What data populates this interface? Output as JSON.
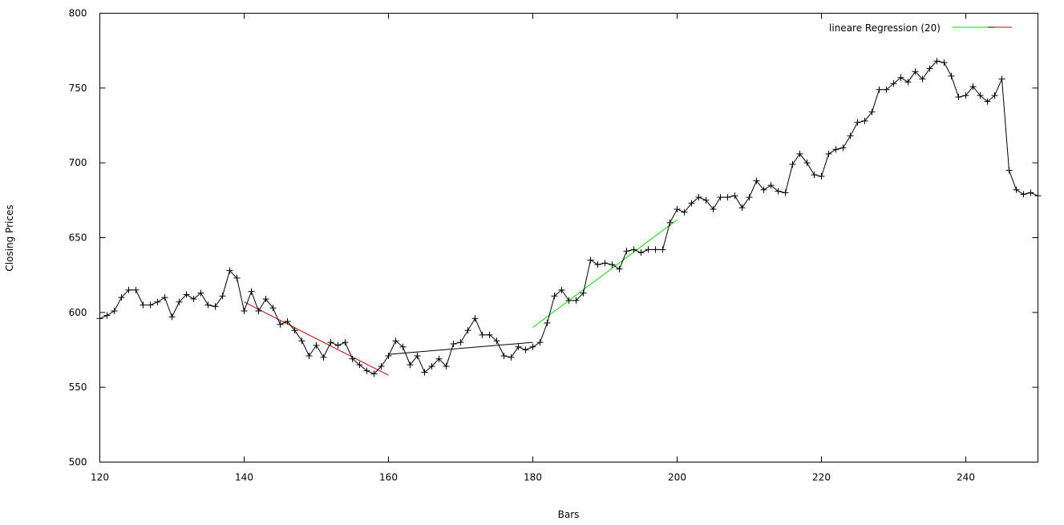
{
  "chart_data": {
    "type": "line",
    "xlabel": "Bars",
    "ylabel": "Closing Prices",
    "xlim": [
      120,
      250
    ],
    "ylim": [
      500,
      800
    ],
    "xticks": [
      120,
      140,
      160,
      180,
      200,
      220,
      240
    ],
    "yticks": [
      500,
      550,
      600,
      650,
      700,
      750,
      800
    ],
    "grid": false,
    "legend_position": "top-right",
    "legend": {
      "label": "lineare Regression (20)",
      "colors": [
        "#00dd00",
        "#000000",
        "#cc0000"
      ]
    },
    "series": [
      {
        "color": "#000000",
        "marker": "plus",
        "x": [
          120,
          121,
          122,
          123,
          124,
          125,
          126,
          127,
          128,
          129,
          130,
          131,
          132,
          133,
          134,
          135,
          136,
          137,
          138,
          139,
          140,
          141,
          142,
          143,
          144,
          145,
          146,
          147,
          148,
          149,
          150,
          151,
          152,
          153,
          154,
          155,
          156,
          157,
          158,
          159,
          160,
          161,
          162,
          163,
          164,
          165,
          166,
          167,
          168,
          169,
          170,
          171,
          172,
          173,
          174,
          175,
          176,
          177,
          178,
          179,
          180,
          181,
          182,
          183,
          184,
          185,
          186,
          187,
          188,
          189,
          190,
          191,
          192,
          193,
          194,
          195,
          196,
          197,
          198,
          199,
          200,
          201,
          202,
          203,
          204,
          205,
          206,
          207,
          208,
          209,
          210,
          211,
          212,
          213,
          214,
          215,
          216,
          217,
          218,
          219,
          220,
          221,
          222,
          223,
          224,
          225,
          226,
          227,
          228,
          229,
          230,
          231,
          232,
          233,
          234,
          235,
          236,
          237,
          238,
          239,
          240,
          241,
          242,
          243,
          244,
          245,
          246,
          247,
          248,
          249,
          250
        ],
        "y": [
          596,
          598,
          601,
          610,
          615,
          615,
          605,
          605,
          607,
          610,
          597,
          607,
          612,
          609,
          613,
          605,
          604,
          611,
          628,
          623,
          601,
          614,
          601,
          609,
          603,
          592,
          594,
          588,
          581,
          571,
          578,
          570,
          580,
          578,
          580,
          569,
          565,
          561,
          559,
          564,
          571,
          581,
          577,
          565,
          571,
          560,
          564,
          569,
          564,
          579,
          580,
          588,
          596,
          585,
          585,
          581,
          571,
          570,
          577,
          575,
          577,
          580,
          593,
          611,
          615,
          608,
          608,
          613,
          635,
          632,
          633,
          632,
          629,
          641,
          642,
          640,
          642,
          642,
          642,
          660,
          669,
          667,
          673,
          677,
          675,
          669,
          677,
          677,
          678,
          670,
          677,
          688,
          682,
          685,
          681,
          680,
          699,
          706,
          700,
          692,
          691,
          706,
          709,
          710,
          718,
          727,
          728,
          734,
          749,
          749,
          753,
          757,
          754,
          761,
          756,
          763,
          768,
          767,
          758,
          744,
          745,
          751,
          745,
          741,
          745,
          756,
          695,
          682,
          679,
          680,
          678
        ]
      }
    ],
    "regression_lines": [
      {
        "color": "#cc0000",
        "x": [
          140,
          160
        ],
        "y": [
          607,
          558
        ]
      },
      {
        "color": "#000000",
        "x": [
          160,
          180
        ],
        "y": [
          572,
          580
        ]
      },
      {
        "color": "#00dd00",
        "x": [
          180,
          200
        ],
        "y": [
          590,
          662
        ]
      }
    ]
  }
}
